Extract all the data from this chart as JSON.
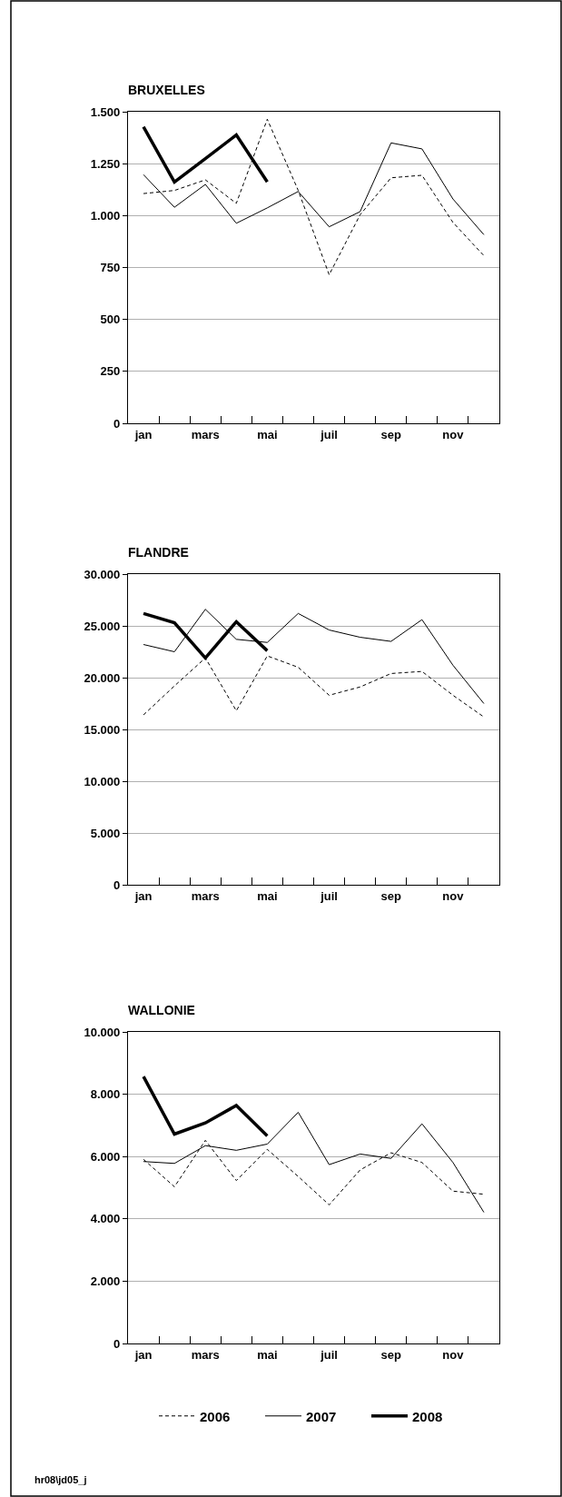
{
  "chart_data": [
    {
      "type": "line",
      "title": "BRUXELLES",
      "categories": [
        "jan",
        null,
        "mars",
        null,
        "mai",
        null,
        "juil",
        null,
        "sep",
        null,
        "nov",
        null
      ],
      "ylim": [
        0,
        1500
      ],
      "yticks": [
        0,
        {
          "value": 250,
          "label": "250"
        },
        {
          "value": 500,
          "label": "500"
        },
        {
          "value": 750,
          "label": "750"
        },
        {
          "value": 1000,
          "label": "1.000"
        },
        {
          "value": 1250,
          "label": "1.250"
        },
        {
          "value": 1500,
          "label": "1.500"
        }
      ],
      "grid": "y",
      "legend": "bottom",
      "series": [
        {
          "name": "2006",
          "color": "#000000",
          "line_style": "dashed",
          "values": [
            1106,
            1121,
            1172,
            1059,
            1464,
            1121,
            715,
            1004,
            1182,
            1194,
            967,
            807
          ]
        },
        {
          "name": "2007",
          "color": "#000000",
          "line_style": "solid",
          "values": [
            1197,
            1040,
            1150,
            963,
            1037,
            1116,
            946,
            1019,
            1350,
            1321,
            1080,
            908
          ]
        },
        {
          "name": "2008",
          "color": "#000000",
          "line_style": "solid",
          "values": [
            1427,
            1162,
            1274,
            1388,
            1162,
            null,
            null,
            null,
            null,
            null,
            null,
            null
          ]
        }
      ]
    },
    {
      "type": "line",
      "title": "FLANDRE",
      "categories": [
        "jan",
        null,
        "mars",
        null,
        "mai",
        null,
        "juil",
        null,
        "sep",
        null,
        "nov",
        null
      ],
      "ylim": [
        0,
        30000
      ],
      "yticks": [
        0,
        {
          "value": 5000,
          "label": "5.000"
        },
        {
          "value": 10000,
          "label": "10.000"
        },
        {
          "value": 15000,
          "label": "15.000"
        },
        {
          "value": 20000,
          "label": "20.000"
        },
        {
          "value": 25000,
          "label": "25.000"
        },
        {
          "value": 30000,
          "label": "30.000"
        }
      ],
      "grid": "y",
      "legend": "bottom",
      "series": [
        {
          "name": "2006",
          "color": "#000000",
          "line_style": "dashed",
          "values": [
            16400,
            19200,
            21900,
            16800,
            22100,
            21000,
            18300,
            19100,
            20400,
            20600,
            18300,
            16200
          ]
        },
        {
          "name": "2007",
          "color": "#000000",
          "line_style": "solid",
          "values": [
            23200,
            22500,
            26600,
            23700,
            23400,
            26200,
            24600,
            23900,
            23500,
            25600,
            21200,
            17500
          ]
        },
        {
          "name": "2008",
          "color": "#000000",
          "line_style": "solid",
          "values": [
            26200,
            25300,
            21900,
            25400,
            22600,
            null,
            null,
            null,
            null,
            null,
            null,
            null
          ]
        }
      ]
    },
    {
      "type": "line",
      "title": "WALLONIE",
      "categories": [
        "jan",
        null,
        "mars",
        null,
        "mai",
        null,
        "juil",
        null,
        "sep",
        null,
        "nov",
        null
      ],
      "ylim": [
        0,
        10000
      ],
      "yticks": [
        0,
        {
          "value": 2000,
          "label": "2.000"
        },
        {
          "value": 4000,
          "label": "4.000"
        },
        {
          "value": 6000,
          "label": "6.000"
        },
        {
          "value": 8000,
          "label": "8.000"
        },
        {
          "value": 10000,
          "label": "10.000"
        }
      ],
      "grid": "y",
      "legend": "bottom",
      "annotations": [
        "hr08\\jd05_j"
      ],
      "series": [
        {
          "name": "2006",
          "color": "#000000",
          "line_style": "dashed",
          "values": [
            5910,
            5030,
            6520,
            5230,
            6230,
            5360,
            4450,
            5570,
            6120,
            5810,
            4890,
            4790
          ]
        },
        {
          "name": "2007",
          "color": "#000000",
          "line_style": "solid",
          "values": [
            5840,
            5780,
            6350,
            6200,
            6400,
            7420,
            5740,
            6080,
            5940,
            7050,
            5810,
            4210
          ]
        },
        {
          "name": "2008",
          "color": "#000000",
          "line_style": "solid",
          "values": [
            8570,
            6720,
            7080,
            7640,
            6660,
            null,
            null,
            null,
            null,
            null,
            null,
            null
          ]
        }
      ]
    }
  ]
}
